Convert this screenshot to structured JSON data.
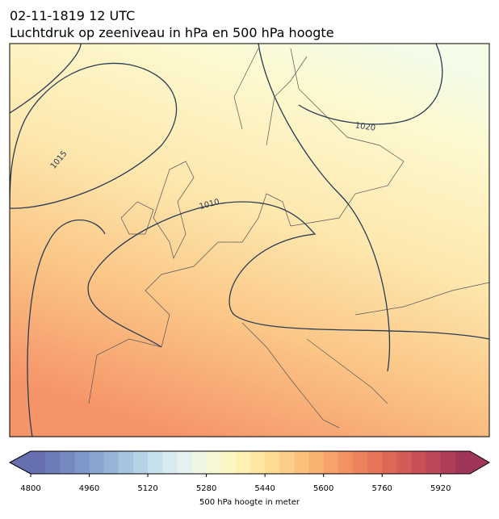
{
  "title": "02-11-1819 12 UTC",
  "subtitle": "Luchtdruk op zeeniveau in hPa en 500 hPa hoogte",
  "contour_labels": [
    "1015",
    "1010",
    "1020"
  ],
  "colorbar": {
    "label": "500 hPa hoogte in meter",
    "lim": [
      4800,
      6000
    ],
    "ticks": [
      4800,
      4960,
      5120,
      5280,
      5440,
      5600,
      5760,
      5920
    ],
    "colors": [
      "#6670b0",
      "#6d7db8",
      "#7589c0",
      "#7f97c8",
      "#8aa6d0",
      "#97b5d8",
      "#a6c4df",
      "#b6d3e6",
      "#c6e0ec",
      "#d6eaf0",
      "#e4f1ef",
      "#eff6e3",
      "#f7f8d3",
      "#fcf6c2",
      "#fef0b1",
      "#fee6a2",
      "#fddb94",
      "#fcce87",
      "#fbc07c",
      "#f9b172",
      "#f6a26a",
      "#f29263",
      "#ed835d",
      "#e67559",
      "#dd6856",
      "#d35c56",
      "#c85157",
      "#bc4758",
      "#ae3e59",
      "#9f3559"
    ]
  }
}
